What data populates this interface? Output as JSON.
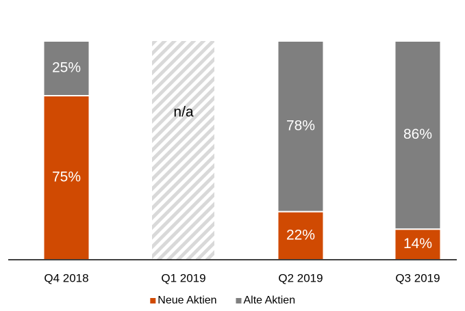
{
  "chart_data": {
    "type": "stacked_bar",
    "categories": [
      "Q4 2018",
      "Q1 2019",
      "Q2 2019",
      "Q3 2019"
    ],
    "series": [
      {
        "name": "Neue Aktien",
        "color": "#d04a02",
        "values": [
          75,
          null,
          22,
          14
        ],
        "value_labels": [
          "75%",
          null,
          "22%",
          "14%"
        ]
      },
      {
        "name": "Alte Aktien",
        "color": "#7f7f7f",
        "values": [
          25,
          null,
          78,
          86
        ],
        "value_labels": [
          "25%",
          null,
          "78%",
          "86%"
        ]
      }
    ],
    "annotations": [
      {
        "category": "Q1 2019",
        "text": "n/a"
      }
    ],
    "ylim": [
      0,
      100
    ],
    "legend": "bottom"
  }
}
